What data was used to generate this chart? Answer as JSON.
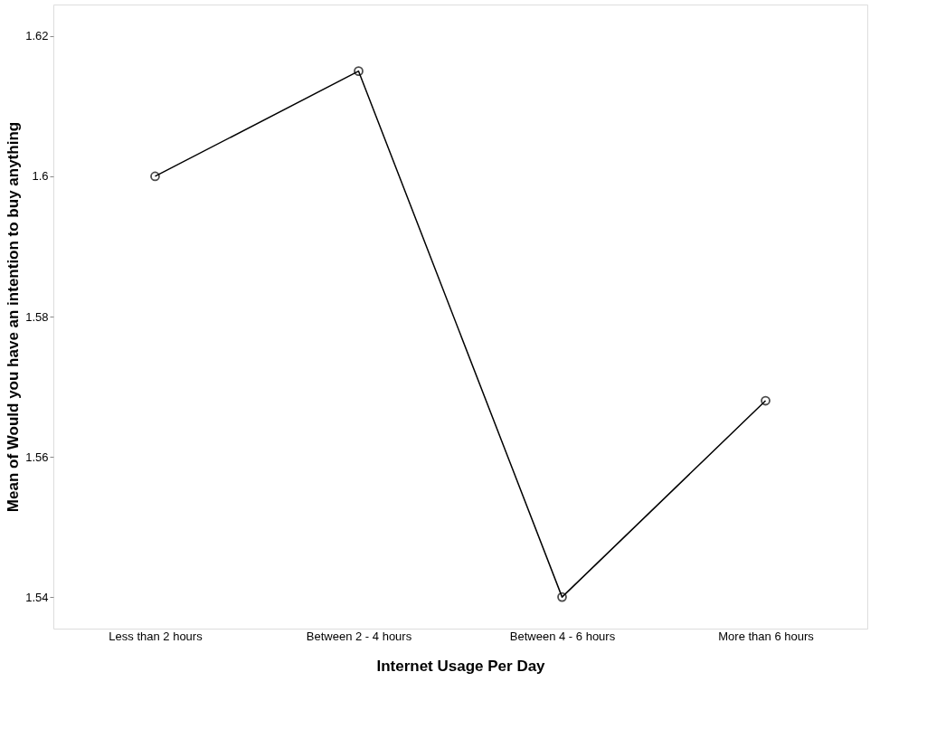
{
  "chart_data": {
    "type": "line",
    "xlabel": "Internet Usage Per Day",
    "ylabel": "Mean of Would you have an intention to buy anything",
    "categories": [
      "Less than 2 hours",
      "Between 2 - 4 hours",
      "Between 4 - 6 hours",
      "More than 6 hours"
    ],
    "series": [
      {
        "color": "#000000",
        "values": [
          1.6,
          1.615,
          1.54,
          1.568
        ]
      }
    ],
    "ylim": [
      1.5355,
      1.6245
    ],
    "yticks": [
      1.54,
      1.56,
      1.58,
      1.6,
      1.62
    ],
    "grid": false,
    "marker": "circle",
    "line_style": "solid"
  }
}
